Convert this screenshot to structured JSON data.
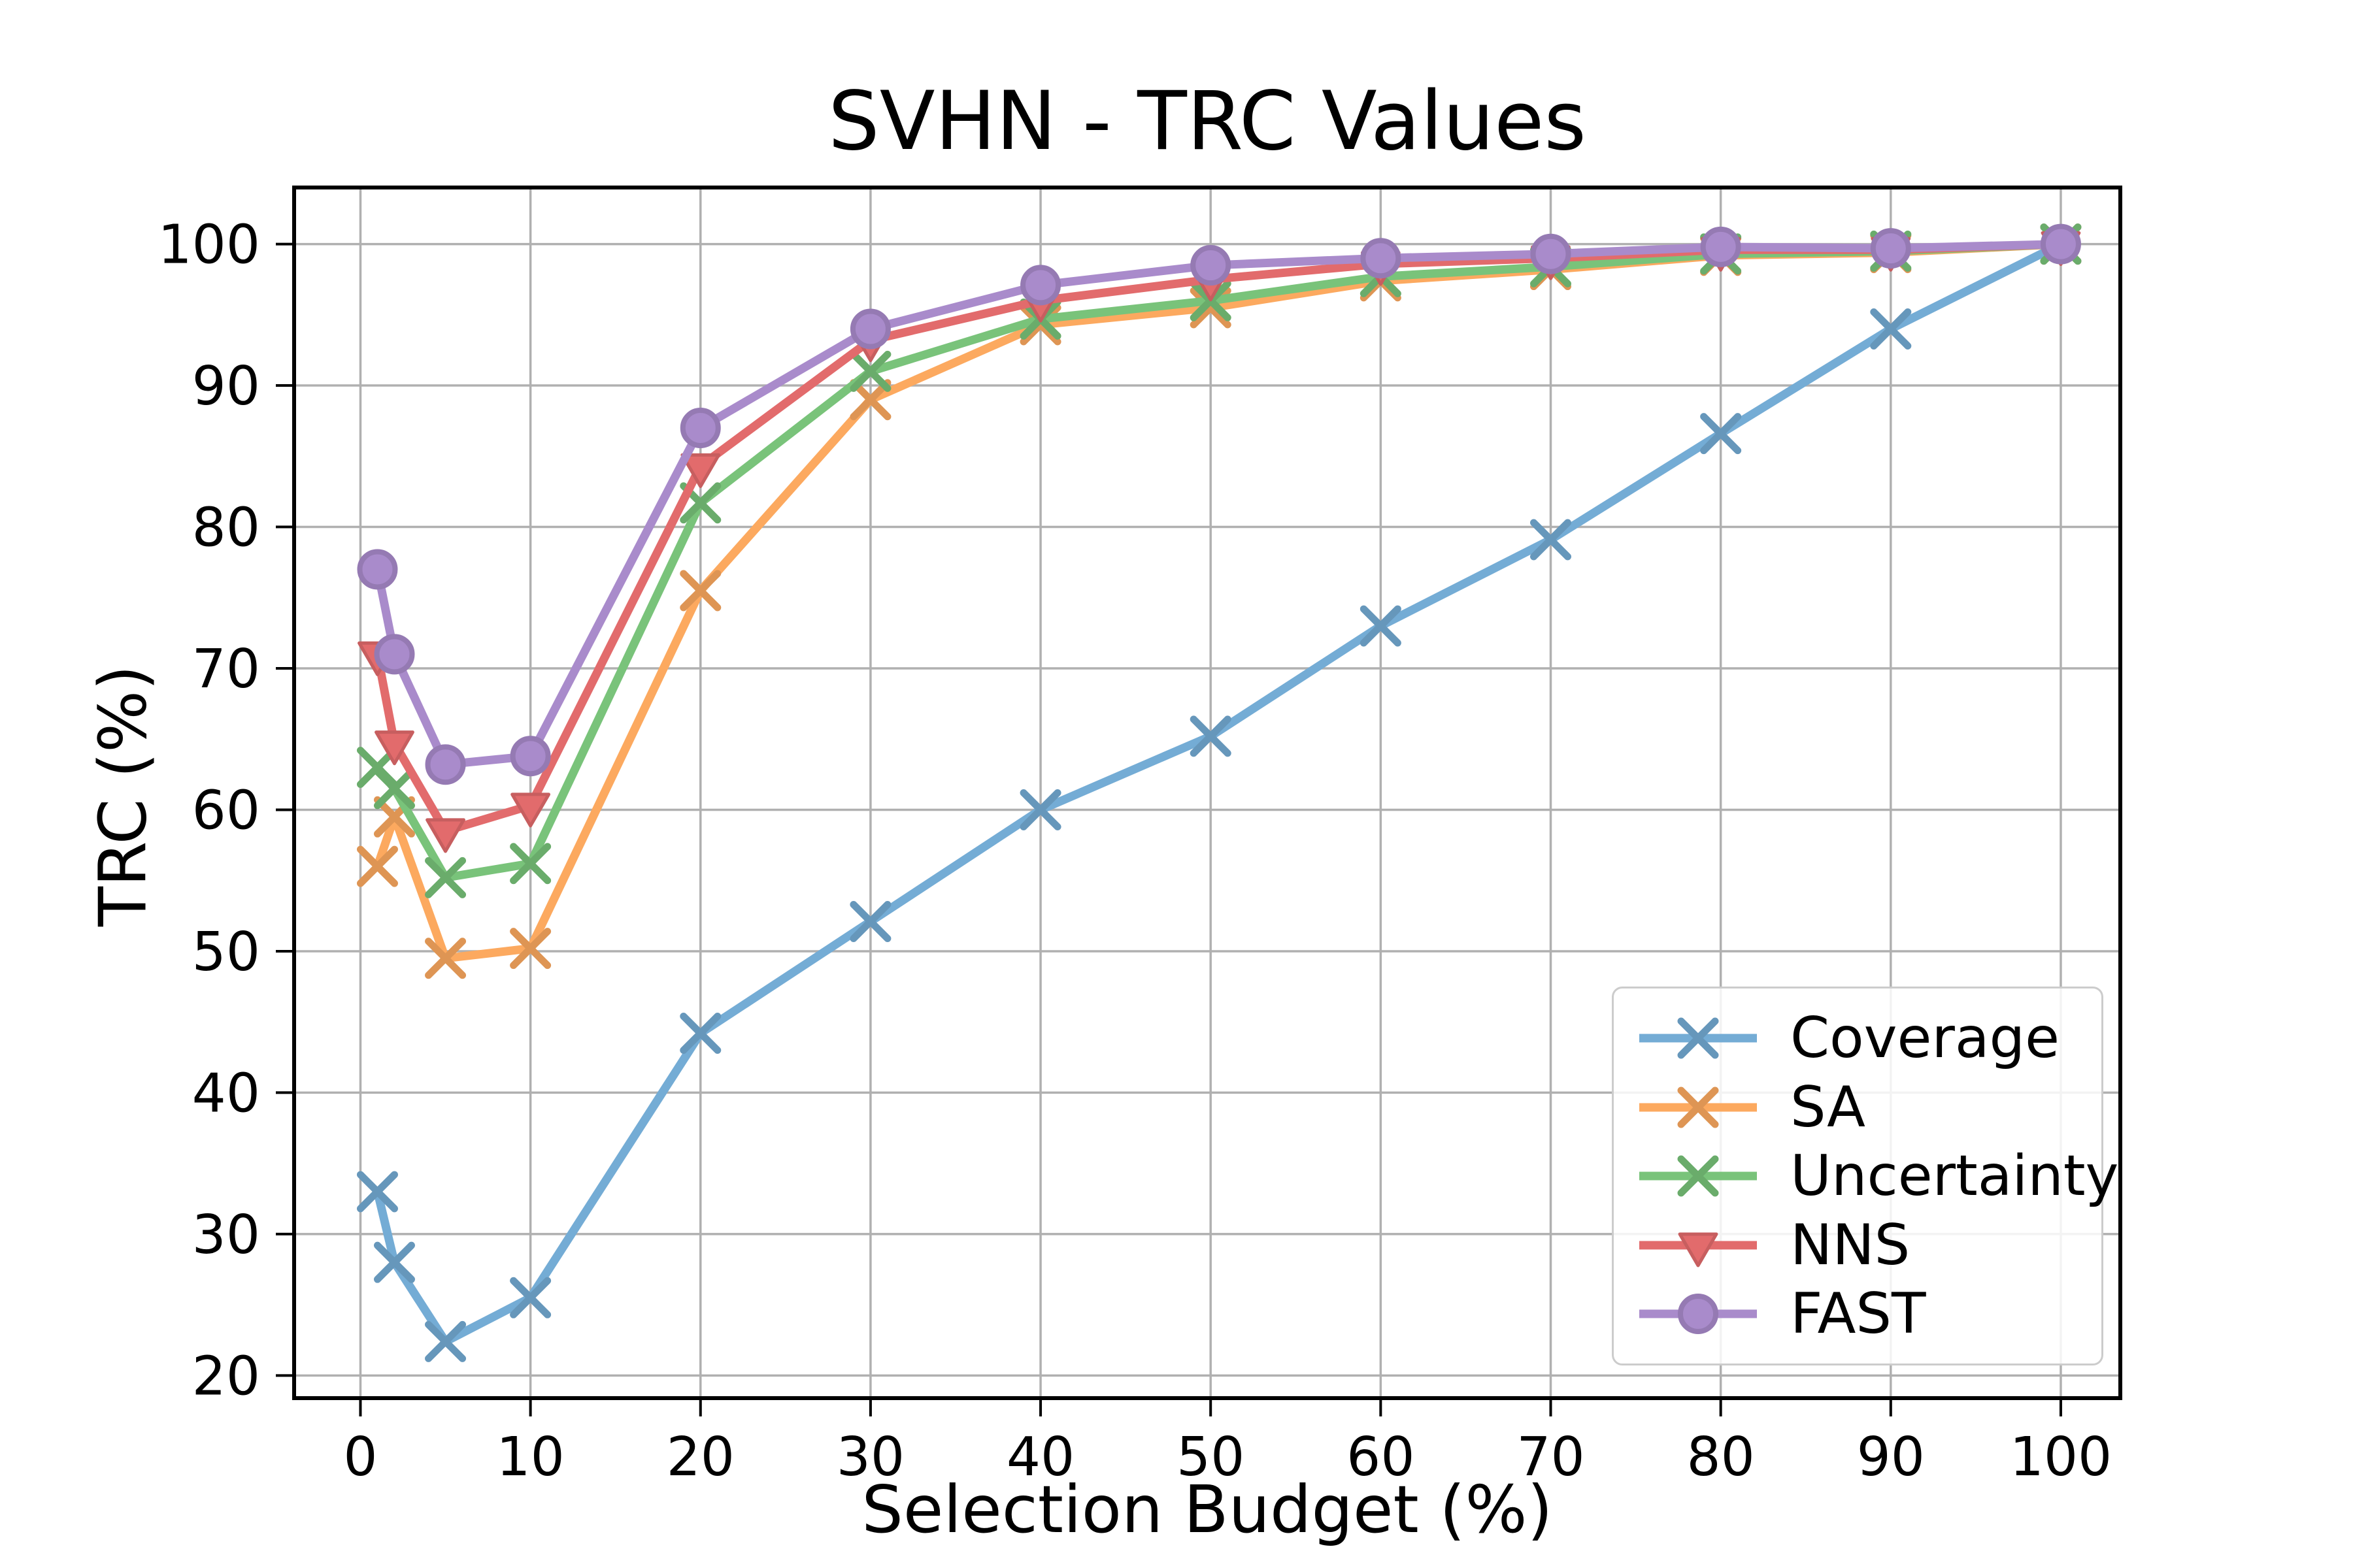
{
  "chart_data": {
    "type": "line",
    "title": "SVHN - TRC Values",
    "xlabel": "Selection Budget (%)",
    "ylabel": "TRC (%)",
    "x": [
      1,
      2,
      5,
      10,
      20,
      30,
      40,
      50,
      60,
      70,
      80,
      90,
      100
    ],
    "series": [
      {
        "name": "Coverage",
        "marker": "x",
        "color": "#74ACD5",
        "values": [
          33.0,
          28.0,
          22.4,
          25.5,
          44.2,
          52.1,
          60.0,
          65.2,
          73.0,
          79.1,
          86.6,
          94.0,
          100.0
        ]
      },
      {
        "name": "SA",
        "marker": "x",
        "color": "#FCA95F",
        "values": [
          56.0,
          59.5,
          49.5,
          50.2,
          75.5,
          89.0,
          94.3,
          95.5,
          97.4,
          98.2,
          99.2,
          99.4,
          100.0
        ]
      },
      {
        "name": "Uncertainty",
        "marker": "x",
        "color": "#79C37A",
        "values": [
          63.0,
          61.5,
          55.2,
          56.2,
          81.7,
          91.0,
          94.7,
          96.0,
          97.7,
          98.4,
          99.3,
          99.5,
          100.0
        ]
      },
      {
        "name": "NNS",
        "marker": "triangle-down",
        "color": "#E26B6C",
        "values": [
          71.0,
          64.7,
          58.5,
          60.3,
          84.3,
          93.2,
          96.0,
          97.5,
          98.6,
          99.0,
          99.6,
          99.6,
          100.0
        ]
      },
      {
        "name": "FAST",
        "marker": "circle",
        "color": "#A98BCB",
        "values": [
          77.0,
          71.0,
          63.2,
          63.8,
          87.0,
          94.0,
          97.1,
          98.5,
          99.0,
          99.3,
          99.8,
          99.7,
          100.0
        ]
      }
    ],
    "xticks": [
      0,
      10,
      20,
      30,
      40,
      50,
      60,
      70,
      80,
      90,
      100
    ],
    "yticks": [
      20,
      30,
      40,
      50,
      60,
      70,
      80,
      90,
      100
    ],
    "xlim": [
      -3.9,
      103.5
    ],
    "ylim": [
      18.4,
      104.0
    ],
    "grid": true,
    "grid_color": "#b0b0b0",
    "spine_color": "#000000",
    "legend_position": "lower right"
  }
}
